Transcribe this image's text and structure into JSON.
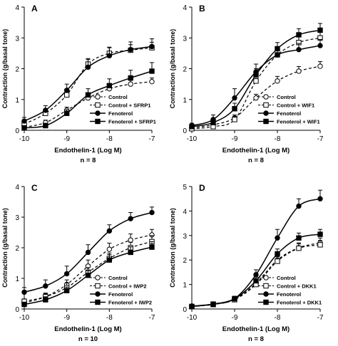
{
  "chart_data": [
    {
      "type": "line",
      "panel_label": "A",
      "ylabel": "Contraction (g/basal tone)",
      "xlabel": "Endothelin-1 (Log M)",
      "n_label": "n = 8",
      "xlim": [
        -10,
        -7
      ],
      "ylim": [
        0,
        4
      ],
      "x_ticks": [
        "-10",
        "-9",
        "-8",
        "-7"
      ],
      "y_ticks": [
        "0",
        "1",
        "2",
        "3",
        "4"
      ],
      "x": [
        -10,
        -9.5,
        -9,
        -8.5,
        -8,
        -7.5,
        -7
      ],
      "legend_position": "bottom-right",
      "series": [
        {
          "name": "Control",
          "marker": "open-circle",
          "dashed": true,
          "values": [
            0.1,
            0.25,
            0.65,
            1.05,
            1.35,
            1.5,
            1.58
          ],
          "errors": [
            0.05,
            0.08,
            0.1,
            0.12,
            0.12,
            0.12,
            0.12
          ]
        },
        {
          "name": "Control + SFRP1",
          "marker": "open-square",
          "dashed": true,
          "values": [
            0.2,
            0.55,
            1.15,
            2.15,
            2.5,
            2.6,
            2.68
          ],
          "errors": [
            0.08,
            0.1,
            0.15,
            0.18,
            0.18,
            0.18,
            0.18
          ]
        },
        {
          "name": "Fenoterol",
          "marker": "filled-circle",
          "dashed": false,
          "values": [
            0.3,
            0.65,
            1.3,
            2.05,
            2.42,
            2.62,
            2.72
          ],
          "errors": [
            0.12,
            0.15,
            0.2,
            0.25,
            0.28,
            0.25,
            0.25
          ]
        },
        {
          "name": "Fenoterol + SFRP1",
          "marker": "filled-square",
          "dashed": false,
          "values": [
            0.08,
            0.15,
            0.55,
            1.15,
            1.45,
            1.7,
            1.92
          ],
          "errors": [
            0.05,
            0.08,
            0.12,
            0.2,
            0.22,
            0.25,
            0.28
          ]
        }
      ]
    },
    {
      "type": "line",
      "panel_label": "B",
      "ylabel": "Contraction (g/basal tone)",
      "xlabel": "Endothelin-1 (Log M)",
      "n_label": "n = 8",
      "xlim": [
        -10,
        -7
      ],
      "ylim": [
        0,
        4
      ],
      "x_ticks": [
        "-10",
        "-9",
        "-8",
        "-7"
      ],
      "y_ticks": [
        "0",
        "1",
        "2",
        "3",
        "4"
      ],
      "x": [
        -10,
        -9.5,
        -9,
        -8.5,
        -8,
        -7.5,
        -7
      ],
      "legend_position": "bottom-right",
      "series": [
        {
          "name": "Control",
          "marker": "open-circle",
          "dashed": true,
          "values": [
            0.08,
            0.18,
            0.4,
            1.05,
            1.6,
            1.92,
            2.08
          ],
          "errors": [
            0.04,
            0.06,
            0.1,
            0.12,
            0.15,
            0.15,
            0.15
          ]
        },
        {
          "name": "Control + WIF1",
          "marker": "open-square",
          "dashed": true,
          "values": [
            0.05,
            0.12,
            0.35,
            1.6,
            2.45,
            2.85,
            3.0
          ],
          "errors": [
            0.04,
            0.06,
            0.1,
            0.2,
            0.25,
            0.22,
            0.22
          ]
        },
        {
          "name": "Fenoterol",
          "marker": "filled-circle",
          "dashed": false,
          "values": [
            0.15,
            0.35,
            1.05,
            1.9,
            2.45,
            2.62,
            2.75
          ],
          "errors": [
            0.08,
            0.15,
            0.3,
            0.25,
            0.25,
            0.2,
            0.2
          ]
        },
        {
          "name": "Fenoterol + WIF1",
          "marker": "filled-square",
          "dashed": false,
          "values": [
            0.12,
            0.25,
            0.7,
            1.8,
            2.65,
            3.1,
            3.25
          ],
          "errors": [
            0.06,
            0.1,
            0.18,
            0.2,
            0.2,
            0.2,
            0.22
          ]
        }
      ]
    },
    {
      "type": "line",
      "panel_label": "C",
      "ylabel": "Contraction (g/basal tone)",
      "xlabel": "Endothelin-1 (Log M)",
      "n_label": "n = 10",
      "xlim": [
        -10,
        -7
      ],
      "ylim": [
        0,
        4
      ],
      "x_ticks": [
        "-10",
        "-9",
        "-8",
        "-7"
      ],
      "y_ticks": [
        "0",
        "1",
        "2",
        "3",
        "4"
      ],
      "x": [
        -10,
        -9.5,
        -9,
        -8.5,
        -8,
        -7.5,
        -7
      ],
      "legend_position": "bottom-right",
      "series": [
        {
          "name": "Control",
          "marker": "open-circle",
          "dashed": true,
          "values": [
            0.2,
            0.4,
            0.8,
            1.4,
            1.95,
            2.25,
            2.42
          ],
          "errors": [
            0.08,
            0.12,
            0.15,
            0.2,
            0.2,
            0.2,
            0.18
          ]
        },
        {
          "name": "Control + IWP2",
          "marker": "open-square",
          "dashed": true,
          "values": [
            0.25,
            0.4,
            0.7,
            1.2,
            1.65,
            2.0,
            2.2
          ],
          "errors": [
            0.08,
            0.1,
            0.15,
            0.15,
            0.18,
            0.18,
            0.2
          ]
        },
        {
          "name": "Fenoterol",
          "marker": "filled-circle",
          "dashed": false,
          "values": [
            0.55,
            0.75,
            1.15,
            1.85,
            2.55,
            2.95,
            3.15
          ],
          "errors": [
            0.15,
            0.2,
            0.25,
            0.25,
            0.2,
            0.2,
            0.18
          ]
        },
        {
          "name": "Fenoterol + IWP2",
          "marker": "filled-square",
          "dashed": false,
          "values": [
            0.15,
            0.3,
            0.6,
            1.1,
            1.6,
            1.85,
            2.02
          ],
          "errors": [
            0.06,
            0.1,
            0.12,
            0.15,
            0.18,
            0.18,
            0.18
          ]
        }
      ]
    },
    {
      "type": "line",
      "panel_label": "D",
      "ylabel": "Contraction (g/basal tone)",
      "xlabel": "Endothelin-1 (Log M)",
      "n_label": "n = 8",
      "xlim": [
        -10,
        -7
      ],
      "ylim": [
        0,
        5
      ],
      "x_ticks": [
        "-10",
        "-9",
        "-8",
        "-7"
      ],
      "y_ticks": [
        "0",
        "1",
        "2",
        "3",
        "4",
        "5"
      ],
      "x": [
        -10,
        -9.5,
        -9,
        -8.5,
        -8,
        -7.5,
        -7
      ],
      "legend_position": "bottom-right",
      "series": [
        {
          "name": "Control",
          "marker": "open-circle",
          "dashed": true,
          "values": [
            0.1,
            0.2,
            0.4,
            1.05,
            2.0,
            2.5,
            2.7
          ],
          "errors": [
            0.04,
            0.06,
            0.08,
            0.15,
            0.2,
            0.2,
            0.2
          ]
        },
        {
          "name": "Control + DKK1",
          "marker": "open-square",
          "dashed": true,
          "values": [
            0.1,
            0.18,
            0.38,
            1.0,
            1.95,
            2.48,
            2.62
          ],
          "errors": [
            0.04,
            0.06,
            0.08,
            0.12,
            0.18,
            0.18,
            0.18
          ]
        },
        {
          "name": "Fenoterol",
          "marker": "filled-circle",
          "dashed": false,
          "values": [
            0.12,
            0.2,
            0.42,
            1.4,
            2.9,
            4.2,
            4.5
          ],
          "errors": [
            0.05,
            0.06,
            0.1,
            0.2,
            0.35,
            0.3,
            0.35
          ]
        },
        {
          "name": "Fenoterol + DKK1",
          "marker": "filled-square",
          "dashed": false,
          "values": [
            0.1,
            0.2,
            0.42,
            1.15,
            2.25,
            2.9,
            3.05
          ],
          "errors": [
            0.04,
            0.06,
            0.1,
            0.15,
            0.2,
            0.2,
            0.2
          ]
        }
      ]
    }
  ]
}
